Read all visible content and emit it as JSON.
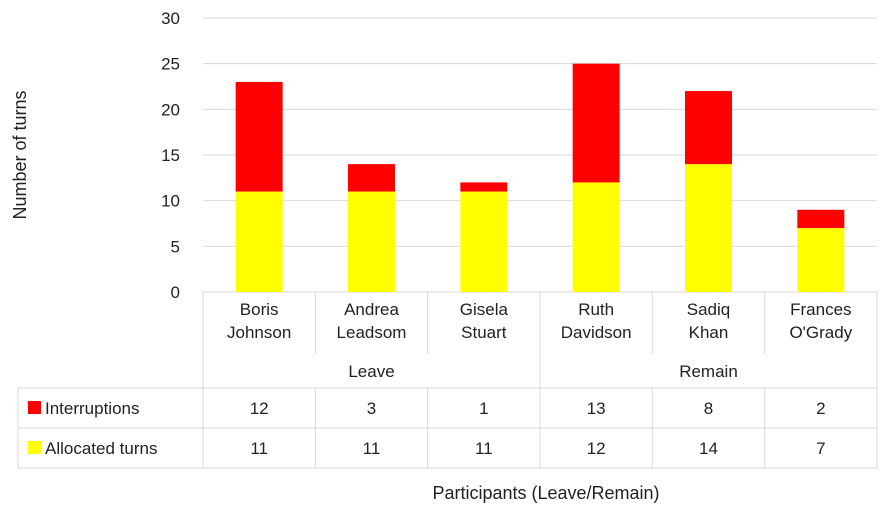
{
  "chart_data": {
    "type": "bar",
    "stacked": true,
    "categories": [
      [
        "Boris",
        "Johnson"
      ],
      [
        "Andrea",
        "Leadsom"
      ],
      [
        "Gisela",
        "Stuart"
      ],
      [
        "Ruth",
        "Davidson"
      ],
      [
        "Sadiq",
        "Khan"
      ],
      [
        "Frances",
        "O'Grady"
      ]
    ],
    "groups": [
      {
        "label": "Leave",
        "count": 3
      },
      {
        "label": "Remain",
        "count": 3
      }
    ],
    "series": [
      {
        "name": "Allocated turns",
        "color": "#ffff00",
        "values": [
          11,
          11,
          11,
          12,
          14,
          7
        ]
      },
      {
        "name": "Interruptions",
        "color": "#ff0000",
        "values": [
          12,
          3,
          1,
          13,
          8,
          2
        ]
      }
    ],
    "table_order": [
      "Interruptions",
      "Allocated turns"
    ],
    "ylim": [
      0,
      30
    ],
    "yticks": [
      0,
      5,
      10,
      15,
      20,
      25,
      30
    ],
    "ylabel": "Number of turns",
    "xlabel": "Participants (Leave/Remain)",
    "grid": true,
    "legend": "data-table"
  }
}
